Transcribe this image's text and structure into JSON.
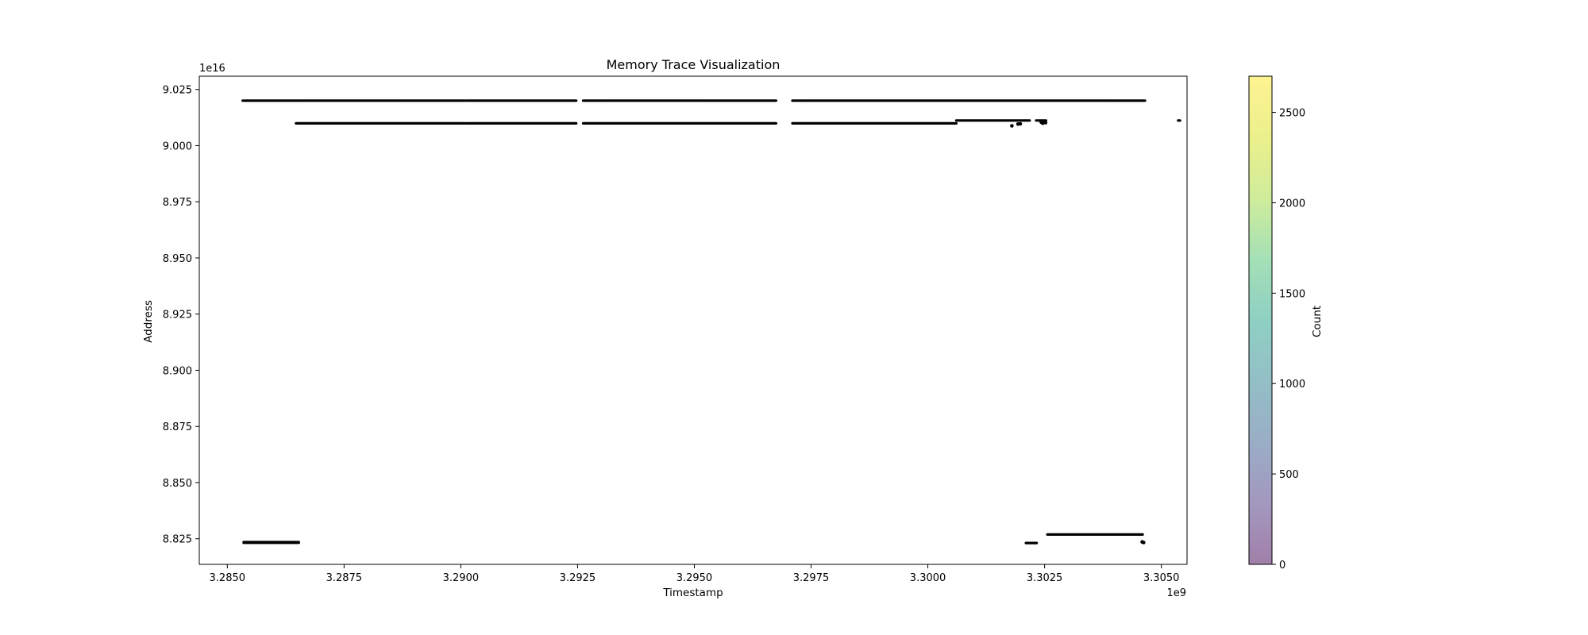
{
  "chart_data": {
    "type": "scatter",
    "title": "Memory Trace Visualization",
    "xlabel": "Timestamp",
    "ylabel": "Address",
    "x_offset_label": "1e9",
    "y_offset_label": "1e16",
    "xlim": [
      3.2844,
      3.30555
    ],
    "ylim": [
      8.8136,
      9.0309
    ],
    "x_ticks": [
      3.285,
      3.2875,
      3.29,
      3.2925,
      3.295,
      3.2975,
      3.3,
      3.3025,
      3.305
    ],
    "x_tick_labels": [
      "3.2850",
      "3.2875",
      "3.2900",
      "3.2925",
      "3.2950",
      "3.2975",
      "3.3000",
      "3.3025",
      "3.3050"
    ],
    "y_ticks": [
      8.825,
      8.85,
      8.875,
      8.9,
      8.925,
      8.95,
      8.975,
      9.0,
      9.025
    ],
    "y_tick_labels": [
      "8.825",
      "8.850",
      "8.875",
      "8.900",
      "8.925",
      "8.950",
      "8.975",
      "9.000",
      "9.025"
    ],
    "grid": false,
    "series": [
      {
        "segments": [
          {
            "x": [
              3.28533,
              3.29009
            ],
            "y": 9.02
          },
          {
            "x": [
              3.29012,
              3.29247
            ],
            "y": 9.02
          },
          {
            "x": [
              3.29262,
              3.29675
            ],
            "y": 9.02
          },
          {
            "x": [
              3.2971,
              3.30465
            ],
            "y": 9.02
          },
          {
            "x": [
              3.28647,
              3.29009
            ],
            "y": 9.0099
          },
          {
            "x": [
              3.29012,
              3.29247
            ],
            "y": 9.0099
          },
          {
            "x": [
              3.29262,
              3.29675
            ],
            "y": 9.0099
          },
          {
            "x": [
              3.2971,
              3.30061
            ],
            "y": 9.0099
          },
          {
            "x": [
              3.30061,
              3.30218
            ],
            "y": 9.0112
          },
          {
            "x": [
              3.30232,
              3.30253
            ],
            "y": 9.0112
          },
          {
            "x": [
              3.30536,
              3.3054
            ],
            "y": 9.0112
          },
          {
            "x": [
              3.28535,
              3.28653
            ],
            "y": 8.8235
          },
          {
            "x": [
              3.28535,
              3.28653
            ],
            "y": 8.8232
          },
          {
            "x": [
              3.3021,
              3.30233
            ],
            "y": 8.8231
          },
          {
            "x": [
              3.30256,
              3.3046
            ],
            "y": 8.8269
          }
        ],
        "points": [
          {
            "x": 3.3018,
            "y": 9.0088
          },
          {
            "x": 3.30193,
            "y": 9.0096
          },
          {
            "x": 3.30198,
            "y": 9.0097
          },
          {
            "x": 3.30243,
            "y": 9.0104
          },
          {
            "x": 3.30246,
            "y": 9.01
          },
          {
            "x": 3.30252,
            "y": 9.0102
          },
          {
            "x": 3.30459,
            "y": 8.8236
          },
          {
            "x": 3.30462,
            "y": 8.8233
          }
        ]
      }
    ],
    "colorbar": {
      "label": "Count",
      "colormap": "viridis",
      "alpha": 0.5,
      "min": 0,
      "max": 2700,
      "ticks": [
        0,
        500,
        1000,
        1500,
        2000,
        2500
      ],
      "tick_labels": [
        "0",
        "500",
        "1000",
        "1500",
        "2000",
        "2500"
      ]
    },
    "colors": {
      "marks": "#000000",
      "frame": "#000000",
      "background": "#ffffff"
    }
  }
}
